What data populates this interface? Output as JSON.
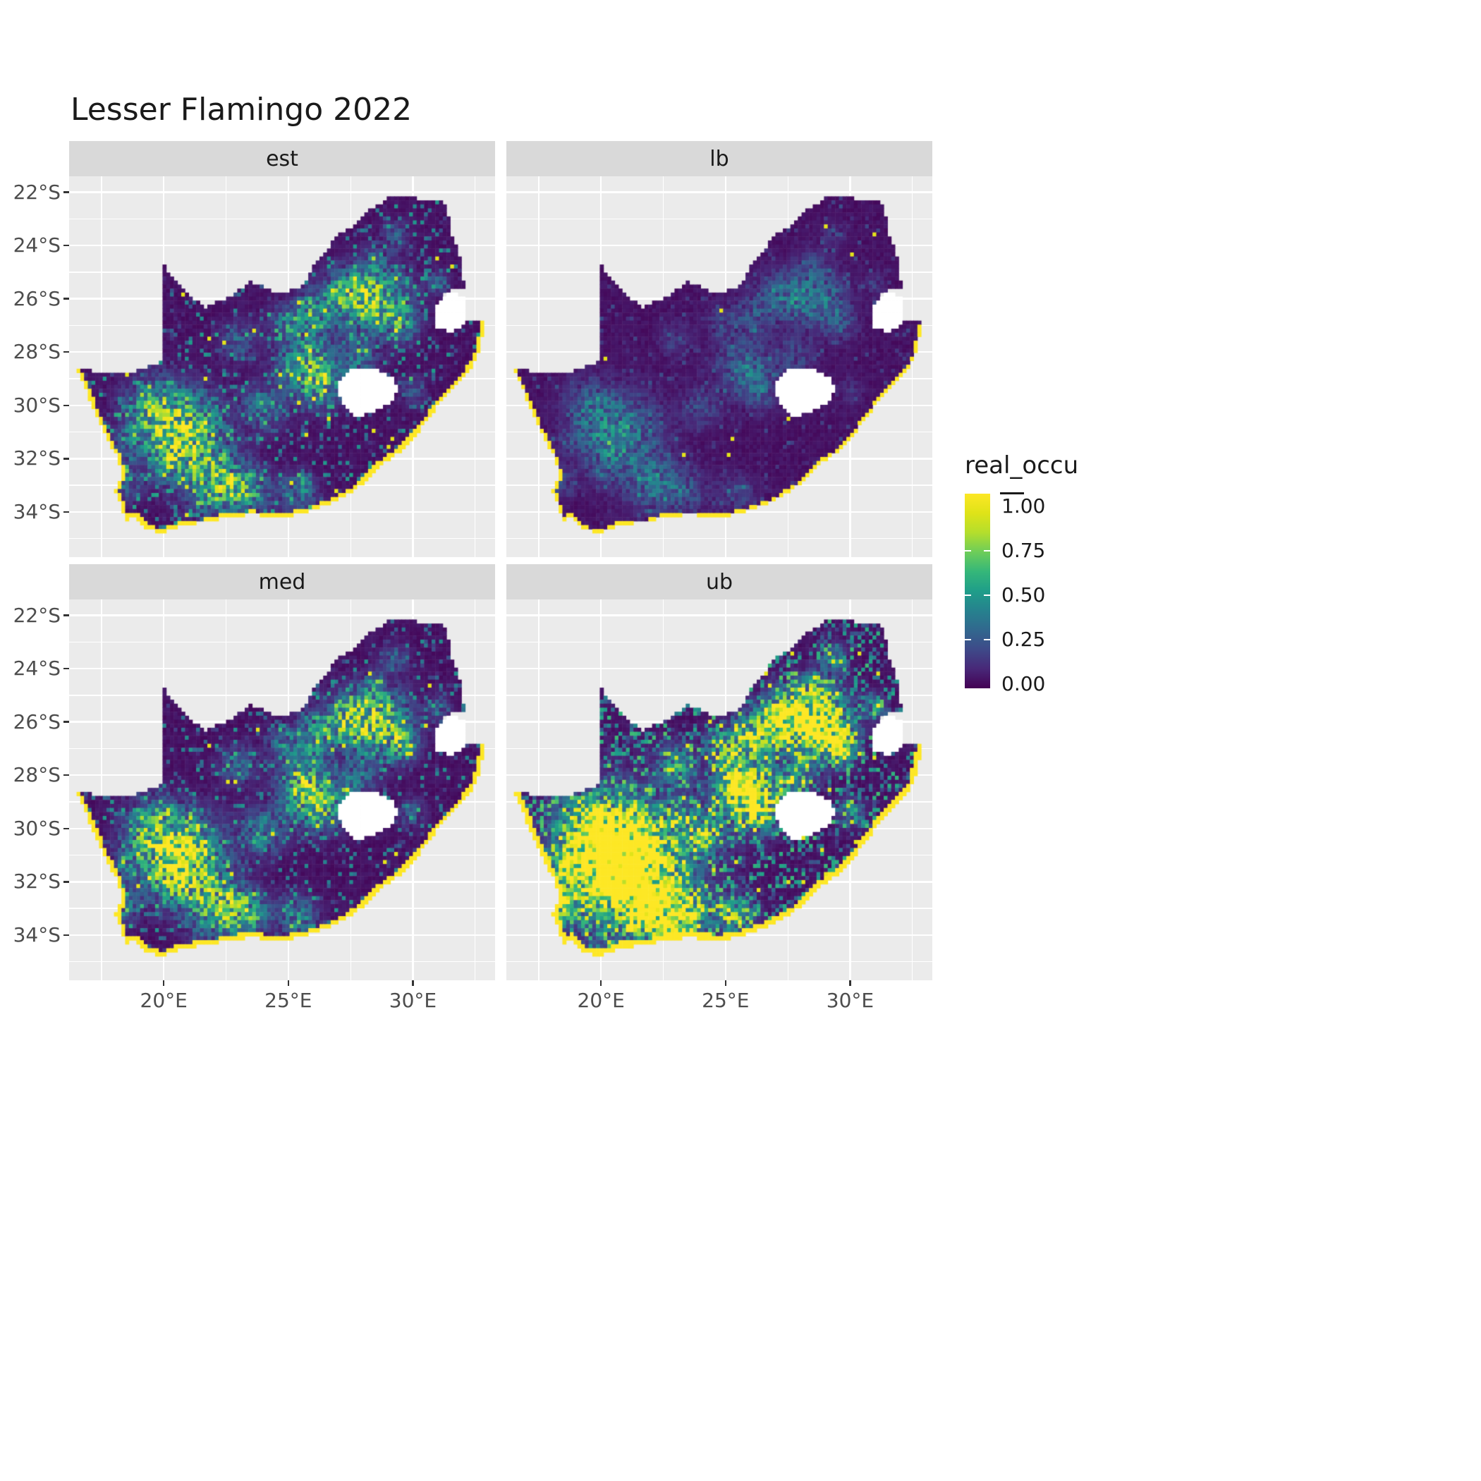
{
  "title": "Lesser Flamingo 2022",
  "legend": {
    "title": "real_occu",
    "entries": [
      {
        "label": "1.00",
        "value": 1.0
      },
      {
        "label": "0.75",
        "value": 0.75
      },
      {
        "label": "0.50",
        "value": 0.5
      },
      {
        "label": "0.25",
        "value": 0.25
      },
      {
        "label": "0.00",
        "value": 0.0
      }
    ]
  },
  "chart_data": {
    "type": "heatmap",
    "variant": "faceted-raster-occupancy-map",
    "title": "Lesser Flamingo 2022",
    "region": "South Africa",
    "facets": [
      {
        "label": "est",
        "gain": 1.0,
        "speckle_threshold": 0.84,
        "speckle_gain": 2.8,
        "coast_width": 0.14,
        "seed": 1,
        "west_boost": 0,
        "rare_yellow": 0.996
      },
      {
        "label": "lb",
        "gain": 0.45,
        "speckle_threshold": 0.92,
        "speckle_gain": 2.0,
        "coast_width": 0.1,
        "seed": 2,
        "west_boost": 0,
        "rare_yellow": 0.998
      },
      {
        "label": "med",
        "gain": 1.1,
        "speckle_threshold": 0.85,
        "speckle_gain": 2.8,
        "coast_width": 0.16,
        "seed": 3,
        "west_boost": 0,
        "rare_yellow": 0.996
      },
      {
        "label": "ub",
        "gain": 1.8,
        "speckle_threshold": 0.66,
        "speckle_gain": 1.7,
        "coast_width": 0.2,
        "seed": 4,
        "west_boost": 0.9,
        "rare_yellow": 0.99
      }
    ],
    "x_axis": {
      "ticks": [
        20,
        25,
        30
      ],
      "tick_labels": [
        "20°E",
        "25°E",
        "30°E"
      ],
      "minor_ticks": [
        17.5,
        22.5,
        27.5,
        32.5
      ],
      "range": [
        16.2,
        33.3
      ]
    },
    "y_axis": {
      "ticks": [
        -22,
        -24,
        -26,
        -28,
        -30,
        -32,
        -34
      ],
      "tick_labels": [
        "22°S",
        "24°S",
        "26°S",
        "28°S",
        "30°S",
        "32°S",
        "34°S"
      ],
      "minor_ticks": [
        -23,
        -25,
        -27,
        -29,
        -31,
        -33,
        -35
      ],
      "range": [
        -35.7,
        -21.4
      ]
    },
    "legend_title": "real_occu",
    "legend_breaks": [
      0,
      0.25,
      0.5,
      0.75,
      1
    ],
    "legend_break_labels": [
      "0.00",
      "0.25",
      "0.50",
      "0.75",
      "1.00"
    ],
    "value_range": [
      0,
      1
    ],
    "colors": {
      "panel_bg": "#EBEBEB",
      "strip_bg": "#D9D9D9",
      "grid": "#FFFFFF",
      "axis_text": "#4D4D4D",
      "text": "#1A1A1A",
      "hole_fill": "#FFFFFF",
      "viridis_stops": [
        [
          0,
          "#440154"
        ],
        [
          0.1,
          "#482878"
        ],
        [
          0.2,
          "#3E4A89"
        ],
        [
          0.3,
          "#31688E"
        ],
        [
          0.4,
          "#26828E"
        ],
        [
          0.5,
          "#1F9E89"
        ],
        [
          0.6,
          "#35B779"
        ],
        [
          0.7,
          "#6DCD59"
        ],
        [
          0.8,
          "#B4DE2C"
        ],
        [
          0.9,
          "#DFE318"
        ],
        [
          1,
          "#FDE725"
        ]
      ]
    },
    "map": {
      "cell_deg": 0.15,
      "outline": [
        [
          20.0,
          -24.75
        ],
        [
          20.7,
          -25.5
        ],
        [
          21.6,
          -26.35
        ],
        [
          22.6,
          -25.95
        ],
        [
          23.5,
          -25.35
        ],
        [
          24.4,
          -25.75
        ],
        [
          25.5,
          -25.65
        ],
        [
          25.95,
          -24.85
        ],
        [
          26.5,
          -24.3
        ],
        [
          26.9,
          -23.65
        ],
        [
          27.7,
          -23.2
        ],
        [
          28.3,
          -22.65
        ],
        [
          29.1,
          -22.15
        ],
        [
          29.7,
          -22.1
        ],
        [
          30.5,
          -22.3
        ],
        [
          31.3,
          -22.4
        ],
        [
          31.6,
          -23.7
        ],
        [
          31.95,
          -24.6
        ],
        [
          32.05,
          -25.6
        ],
        [
          31.4,
          -25.7
        ],
        [
          30.85,
          -26.3
        ],
        [
          30.9,
          -27.1
        ],
        [
          31.6,
          -27.25
        ],
        [
          32.15,
          -26.85
        ],
        [
          32.9,
          -26.85
        ],
        [
          32.55,
          -28.3
        ],
        [
          31.8,
          -29.2
        ],
        [
          31.05,
          -29.95
        ],
        [
          30.3,
          -30.9
        ],
        [
          29.45,
          -31.75
        ],
        [
          28.6,
          -32.3
        ],
        [
          27.85,
          -33.05
        ],
        [
          26.9,
          -33.6
        ],
        [
          25.95,
          -33.95
        ],
        [
          24.8,
          -34.2
        ],
        [
          23.6,
          -34.1
        ],
        [
          22.55,
          -34.15
        ],
        [
          21.8,
          -34.4
        ],
        [
          20.75,
          -34.45
        ],
        [
          20.0,
          -34.8
        ],
        [
          19.25,
          -34.6
        ],
        [
          18.85,
          -34.15
        ],
        [
          18.45,
          -34.3
        ],
        [
          18.3,
          -33.85
        ],
        [
          18.05,
          -33.15
        ],
        [
          18.35,
          -32.7
        ],
        [
          18.1,
          -31.9
        ],
        [
          17.55,
          -30.9
        ],
        [
          17.0,
          -29.7
        ],
        [
          16.5,
          -28.65
        ],
        [
          17.6,
          -28.75
        ],
        [
          18.6,
          -28.85
        ],
        [
          19.4,
          -28.5
        ],
        [
          20.0,
          -28.35
        ]
      ],
      "coast_index_range": [
        24,
        49
      ],
      "lesotho_hole": [
        [
          27.05,
          -29.1
        ],
        [
          27.55,
          -28.65
        ],
        [
          28.4,
          -28.6
        ],
        [
          29.1,
          -28.9
        ],
        [
          29.45,
          -29.35
        ],
        [
          29.15,
          -29.95
        ],
        [
          28.45,
          -30.2
        ],
        [
          27.75,
          -30.45
        ],
        [
          27.3,
          -30.05
        ],
        [
          27.0,
          -29.55
        ]
      ],
      "eswatini_hole": [
        [
          31.4,
          -25.72
        ],
        [
          32.12,
          -25.95
        ],
        [
          32.15,
          -26.85
        ],
        [
          31.6,
          -27.25
        ],
        [
          30.9,
          -27.1
        ],
        [
          30.85,
          -26.3
        ]
      ],
      "hotspots": [
        [
          28.7,
          -26.0,
          1.1,
          1.0
        ],
        [
          27.3,
          -25.9,
          0.9,
          0.8
        ],
        [
          26.0,
          -26.6,
          0.8,
          0.55
        ],
        [
          29.6,
          -26.9,
          0.6,
          0.55
        ],
        [
          25.7,
          -28.5,
          1.0,
          0.9
        ],
        [
          26.4,
          -29.3,
          0.8,
          0.6
        ],
        [
          27.8,
          -28.2,
          0.7,
          0.5
        ],
        [
          24.0,
          -30.1,
          0.8,
          0.5
        ],
        [
          19.6,
          -30.2,
          1.1,
          0.85
        ],
        [
          21.1,
          -30.9,
          1.3,
          0.9
        ],
        [
          20.3,
          -31.9,
          1.0,
          0.7
        ],
        [
          22.1,
          -32.9,
          1.1,
          0.9
        ],
        [
          23.4,
          -33.2,
          0.8,
          0.6
        ],
        [
          25.4,
          -33.3,
          0.7,
          0.5
        ],
        [
          18.4,
          -32.9,
          0.6,
          0.5
        ],
        [
          18.6,
          -31.4,
          0.5,
          0.4
        ],
        [
          24.8,
          -26.9,
          0.6,
          0.4
        ],
        [
          23.0,
          -27.6,
          0.7,
          0.35
        ],
        [
          30.0,
          -29.4,
          0.5,
          0.3
        ],
        [
          31.0,
          -25.4,
          0.4,
          0.35
        ],
        [
          29.3,
          -23.6,
          0.5,
          0.3
        ],
        [
          28.4,
          -24.6,
          0.5,
          0.3
        ]
      ],
      "ub_boost_center": [
        20.9,
        -31.4,
        2.6
      ]
    }
  }
}
